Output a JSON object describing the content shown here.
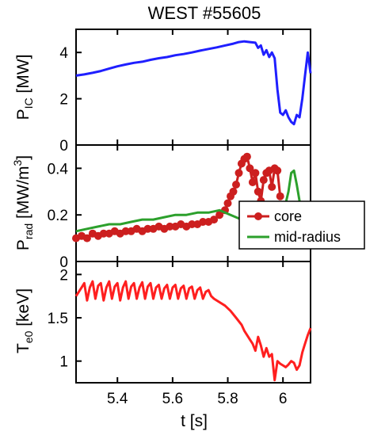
{
  "chart_data": [
    {
      "type": "line",
      "title": "WEST #55605",
      "ylabel_main": "P",
      "ylabel_sub": "IC",
      "ylabel_unit": " [MW]",
      "xlim": [
        5.25,
        6.1
      ],
      "ylim": [
        0,
        5
      ],
      "yticks": [
        0,
        2,
        4
      ],
      "ytick_labels": [
        "0",
        "2",
        "4"
      ],
      "series": [
        {
          "color": "#1f1fff",
          "x": [
            5.25,
            5.28,
            5.31,
            5.34,
            5.37,
            5.4,
            5.43,
            5.46,
            5.49,
            5.52,
            5.55,
            5.58,
            5.61,
            5.64,
            5.67,
            5.7,
            5.73,
            5.76,
            5.79,
            5.82,
            5.84,
            5.86,
            5.88,
            5.9,
            5.91,
            5.92,
            5.93,
            5.94,
            5.95,
            5.96,
            5.97,
            5.98,
            5.99,
            6.0,
            6.01,
            6.02,
            6.03,
            6.04,
            6.05,
            6.06,
            6.07,
            6.08,
            6.09,
            6.1
          ],
          "y": [
            3.0,
            3.05,
            3.12,
            3.2,
            3.3,
            3.4,
            3.48,
            3.55,
            3.6,
            3.68,
            3.75,
            3.8,
            3.88,
            3.93,
            4.0,
            4.08,
            4.15,
            4.22,
            4.3,
            4.38,
            4.45,
            4.48,
            4.45,
            4.42,
            4.2,
            4.3,
            3.9,
            4.1,
            3.8,
            4.0,
            3.75,
            2.4,
            1.4,
            1.3,
            1.5,
            1.2,
            1.0,
            0.9,
            1.3,
            1.2,
            2.0,
            3.0,
            4.0,
            3.1
          ]
        }
      ]
    },
    {
      "type": "line",
      "ylabel_main": "P",
      "ylabel_sub": "rad",
      "ylabel_unit": " [MW/m",
      "ylabel_sup": "3",
      "ylabel_close": "]",
      "xlim": [
        5.25,
        6.1
      ],
      "ylim": [
        0,
        0.5
      ],
      "yticks": [
        0,
        0.2,
        0.4
      ],
      "ytick_labels": [
        "0",
        "0.2",
        "0.4"
      ],
      "legend": {
        "placement": "right",
        "entries": [
          "core",
          "mid-radius"
        ]
      },
      "series": [
        {
          "name": "core",
          "color": "#cc1f1f",
          "marker": "circle",
          "x": [
            5.25,
            5.27,
            5.29,
            5.31,
            5.33,
            5.35,
            5.37,
            5.39,
            5.41,
            5.43,
            5.45,
            5.47,
            5.49,
            5.51,
            5.53,
            5.55,
            5.57,
            5.59,
            5.61,
            5.63,
            5.65,
            5.67,
            5.69,
            5.71,
            5.73,
            5.75,
            5.77,
            5.79,
            5.8,
            5.81,
            5.82,
            5.83,
            5.84,
            5.85,
            5.86,
            5.87,
            5.88,
            5.89,
            5.9,
            5.91,
            5.92,
            5.93,
            5.94,
            5.95,
            5.96,
            5.97,
            5.98,
            5.99
          ],
          "y": [
            0.1,
            0.11,
            0.1,
            0.12,
            0.11,
            0.12,
            0.12,
            0.13,
            0.12,
            0.13,
            0.13,
            0.14,
            0.13,
            0.14,
            0.14,
            0.15,
            0.14,
            0.15,
            0.15,
            0.16,
            0.15,
            0.16,
            0.16,
            0.17,
            0.17,
            0.18,
            0.2,
            0.22,
            0.25,
            0.28,
            0.3,
            0.33,
            0.38,
            0.42,
            0.44,
            0.45,
            0.4,
            0.34,
            0.38,
            0.3,
            0.26,
            0.35,
            0.38,
            0.39,
            0.32,
            0.4,
            0.39,
            0.28
          ]
        },
        {
          "name": "mid-radius",
          "color": "#2ca02c",
          "x": [
            5.25,
            5.29,
            5.33,
            5.37,
            5.41,
            5.45,
            5.49,
            5.53,
            5.57,
            5.61,
            5.65,
            5.69,
            5.73,
            5.77,
            5.81,
            5.85,
            5.89,
            5.93,
            5.97,
            6.0,
            6.02,
            6.03,
            6.04,
            6.05,
            6.06,
            6.07,
            6.08
          ],
          "y": [
            0.13,
            0.14,
            0.15,
            0.16,
            0.16,
            0.17,
            0.18,
            0.18,
            0.19,
            0.2,
            0.2,
            0.21,
            0.21,
            0.22,
            0.2,
            0.18,
            0.17,
            0.16,
            0.16,
            0.2,
            0.3,
            0.38,
            0.39,
            0.33,
            0.26,
            0.2,
            0.18
          ]
        }
      ]
    },
    {
      "type": "line",
      "ylabel_main": "T",
      "ylabel_sub": "e0",
      "ylabel_unit": " [keV]",
      "xlabel": "t [s]",
      "xlim": [
        5.25,
        6.1
      ],
      "ylim": [
        0.75,
        2.15
      ],
      "xticks": [
        5.4,
        5.6,
        5.8,
        6.0
      ],
      "xtick_labels": [
        "5.4",
        "5.6",
        "5.8",
        "6"
      ],
      "yticks": [
        1,
        1.5,
        2
      ],
      "ytick_labels": [
        "1",
        "1.5",
        "2"
      ],
      "series": [
        {
          "color": "#ff1f1f",
          "x": [
            5.25,
            5.27,
            5.28,
            5.29,
            5.3,
            5.31,
            5.32,
            5.33,
            5.34,
            5.35,
            5.36,
            5.37,
            5.38,
            5.39,
            5.4,
            5.41,
            5.42,
            5.43,
            5.44,
            5.45,
            5.46,
            5.47,
            5.48,
            5.49,
            5.5,
            5.51,
            5.52,
            5.53,
            5.54,
            5.55,
            5.56,
            5.57,
            5.58,
            5.59,
            5.6,
            5.61,
            5.62,
            5.63,
            5.64,
            5.65,
            5.66,
            5.67,
            5.68,
            5.69,
            5.7,
            5.71,
            5.72,
            5.73,
            5.74,
            5.75,
            5.77,
            5.79,
            5.81,
            5.83,
            5.85,
            5.86,
            5.87,
            5.88,
            5.89,
            5.9,
            5.91,
            5.92,
            5.93,
            5.94,
            5.95,
            5.96,
            5.97,
            5.98,
            5.99,
            6.0,
            6.01,
            6.02,
            6.03,
            6.04,
            6.05,
            6.06,
            6.07,
            6.08,
            6.09,
            6.1
          ],
          "y": [
            1.75,
            1.85,
            1.9,
            1.7,
            1.85,
            1.92,
            1.72,
            1.87,
            1.9,
            1.7,
            1.85,
            1.92,
            1.72,
            1.86,
            1.9,
            1.7,
            1.85,
            1.92,
            1.72,
            1.86,
            1.9,
            1.72,
            1.85,
            1.91,
            1.72,
            1.86,
            1.9,
            1.72,
            1.85,
            1.88,
            1.72,
            1.84,
            1.88,
            1.72,
            1.85,
            1.88,
            1.72,
            1.84,
            1.87,
            1.72,
            1.84,
            1.86,
            1.72,
            1.82,
            1.85,
            1.72,
            1.8,
            1.82,
            1.75,
            1.72,
            1.68,
            1.64,
            1.58,
            1.5,
            1.42,
            1.35,
            1.3,
            1.25,
            1.2,
            1.12,
            1.28,
            1.18,
            1.05,
            1.15,
            1.05,
            1.08,
            0.78,
            1.0,
            0.97,
            0.95,
            0.93,
            0.96,
            1.0,
            0.98,
            0.9,
            0.95,
            1.1,
            1.2,
            1.3,
            1.38
          ]
        }
      ]
    }
  ]
}
